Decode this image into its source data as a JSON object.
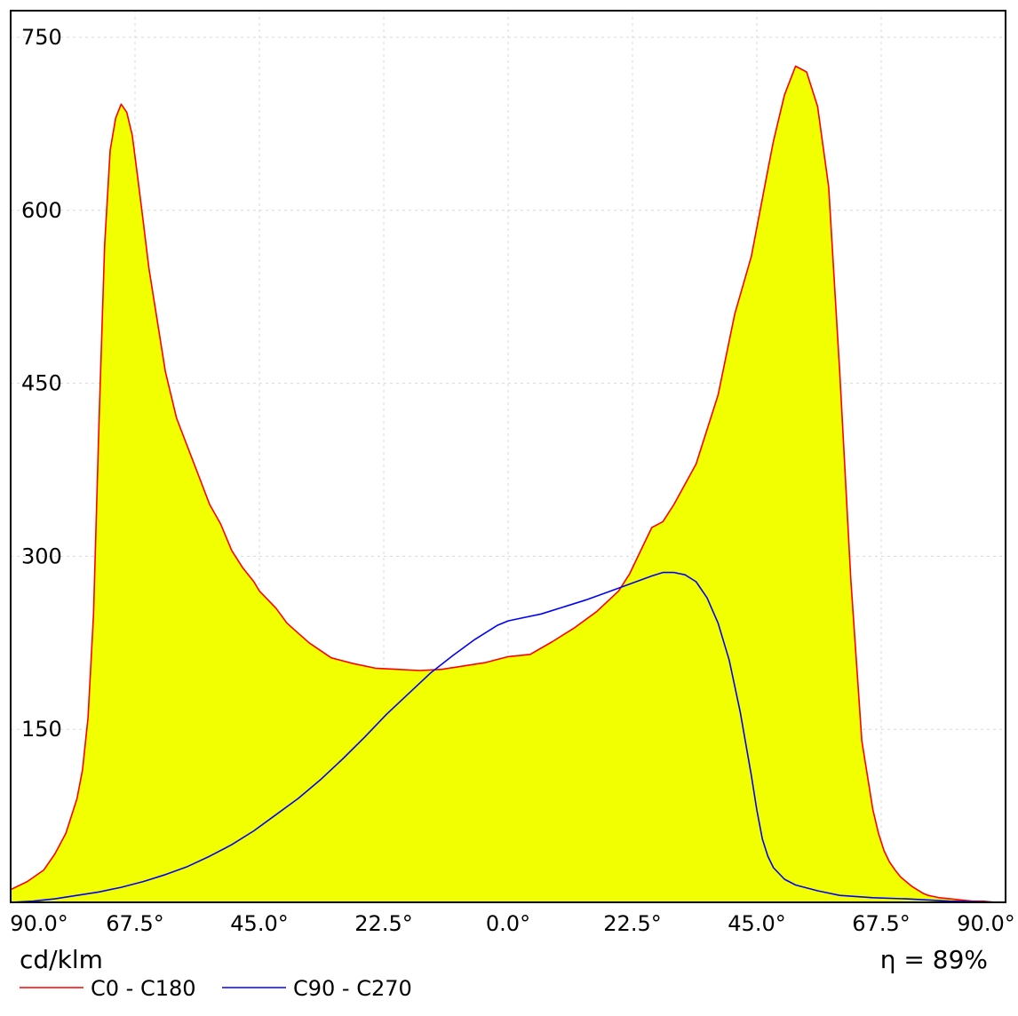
{
  "chart_data": {
    "type": "line",
    "title": "",
    "xlabel": "",
    "ylabel": "cd/klm",
    "x_tick_labels": [
      "90.0°",
      "67.5°",
      "45.0°",
      "22.5°",
      "0.0°",
      "22.5°",
      "45.0°",
      "67.5°",
      "90.0°"
    ],
    "y_ticks": [
      150,
      300,
      450,
      600,
      750
    ],
    "ylim": [
      0,
      750
    ],
    "xlim": [
      -90,
      90
    ],
    "grid": true,
    "legend_position": "bottom-left",
    "efficiency_label": "η = 89%",
    "series": [
      {
        "name": "C0 - C180",
        "color": "#ff0000",
        "fill": "#f2ff00",
        "x": [
          -90,
          -87,
          -84,
          -82,
          -80,
          -78,
          -77,
          -76,
          -75,
          -74,
          -73,
          -72,
          -71,
          -70,
          -69,
          -68,
          -67,
          -66,
          -65,
          -64,
          -62,
          -60,
          -58,
          -56,
          -54,
          -52,
          -50,
          -48,
          -46,
          -45,
          -42,
          -40,
          -36,
          -32,
          -28,
          -24,
          -20,
          -16,
          -12,
          -8,
          -4,
          0,
          4,
          8,
          12,
          16,
          20,
          22,
          24,
          26,
          28,
          30,
          34,
          38,
          41,
          44,
          46,
          47,
          48,
          50,
          52,
          54,
          56,
          58,
          60,
          62,
          64,
          66,
          67,
          68,
          69,
          70,
          71,
          72,
          73,
          74,
          75,
          76,
          77,
          78,
          80,
          82,
          84,
          86,
          88,
          90
        ],
        "y": [
          11,
          18,
          28,
          42,
          60,
          90,
          115,
          160,
          250,
          420,
          570,
          652,
          680,
          692,
          685,
          665,
          628,
          590,
          550,
          520,
          460,
          420,
          395,
          370,
          345,
          328,
          305,
          290,
          278,
          270,
          255,
          242,
          225,
          212,
          207,
          203,
          202,
          201,
          202,
          205,
          208,
          213,
          215,
          226,
          238,
          252,
          270,
          285,
          305,
          325,
          330,
          345,
          380,
          440,
          510,
          560,
          610,
          635,
          660,
          700,
          725,
          720,
          690,
          620,
          460,
          280,
          140,
          80,
          60,
          45,
          35,
          28,
          22,
          18,
          14,
          11,
          8,
          6,
          5,
          4,
          3,
          2,
          1,
          1,
          0,
          0
        ]
      },
      {
        "name": "C90 - C270",
        "color": "#0000ff",
        "x": [
          -90,
          -86,
          -82,
          -78,
          -74,
          -70,
          -66,
          -62,
          -58,
          -54,
          -50,
          -46,
          -42,
          -38,
          -34,
          -30,
          -26,
          -22,
          -18,
          -14,
          -10,
          -6,
          -2,
          0,
          2,
          6,
          10,
          14,
          18,
          22,
          26,
          28,
          30,
          32,
          34,
          36,
          38,
          40,
          42,
          44,
          45,
          46,
          47,
          48,
          49,
          50,
          52,
          56,
          60,
          66,
          72,
          80,
          90
        ],
        "y": [
          0,
          1,
          3,
          6,
          9,
          13,
          18,
          24,
          31,
          40,
          50,
          62,
          76,
          90,
          106,
          124,
          143,
          163,
          181,
          199,
          214,
          228,
          240,
          244,
          246,
          250,
          256,
          262,
          269,
          276,
          283,
          286,
          286,
          284,
          278,
          264,
          242,
          210,
          165,
          110,
          80,
          55,
          40,
          30,
          25,
          20,
          15,
          10,
          6,
          4,
          3,
          1,
          0
        ]
      }
    ]
  }
}
